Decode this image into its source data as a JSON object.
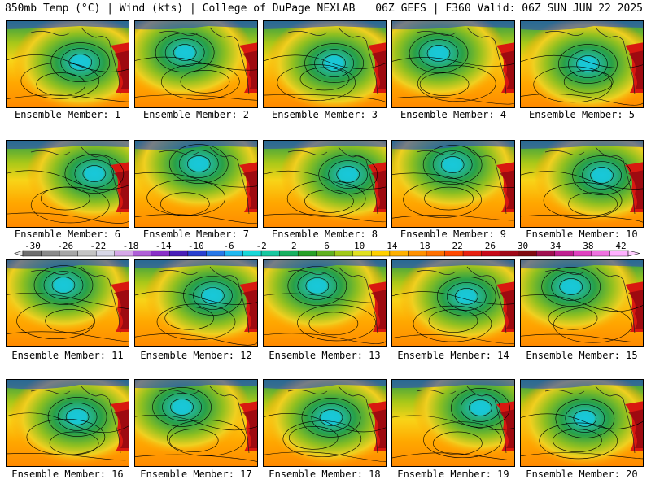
{
  "header": {
    "left": "850mb Temp (°C) | Wind (kts) | College of DuPage NEXLAB",
    "right": "06Z GEFS | F360 Valid: 06Z SUN JUN 22 2025"
  },
  "members": [
    "Ensemble Member: 1",
    "Ensemble Member: 2",
    "Ensemble Member: 3",
    "Ensemble Member: 4",
    "Ensemble Member: 5",
    "Ensemble Member: 6",
    "Ensemble Member: 7",
    "Ensemble Member: 8",
    "Ensemble Member: 9",
    "Ensemble Member: 10",
    "Ensemble Member: 11",
    "Ensemble Member: 12",
    "Ensemble Member: 13",
    "Ensemble Member: 14",
    "Ensemble Member: 15",
    "Ensemble Member: 16",
    "Ensemble Member: 17",
    "Ensemble Member: 18",
    "Ensemble Member: 19",
    "Ensemble Member: 20"
  ],
  "colorbar": {
    "labels": [
      "-30",
      "-26",
      "-22",
      "-18",
      "-14",
      "-10",
      "-6",
      "-2",
      "2",
      "6",
      "10",
      "14",
      "18",
      "22",
      "26",
      "30",
      "34",
      "38",
      "42"
    ],
    "colors": [
      "#6e6e6e",
      "#8a8a8a",
      "#a6a6a6",
      "#c4c4c4",
      "#d8d8e8",
      "#d6a8e8",
      "#b060d8",
      "#8a2fc8",
      "#4a1fb8",
      "#2a40d0",
      "#2878e8",
      "#20b8f0",
      "#18d8d8",
      "#18c8a0",
      "#18b060",
      "#28a028",
      "#60b020",
      "#a0c818",
      "#e0e020",
      "#ffd000",
      "#ffb000",
      "#ff9000",
      "#ff7000",
      "#ff4800",
      "#e82010",
      "#c80818",
      "#a00818",
      "#800a10",
      "#a01050",
      "#c02090",
      "#e040c0",
      "#f070e0",
      "#ffb0ff"
    ]
  }
}
